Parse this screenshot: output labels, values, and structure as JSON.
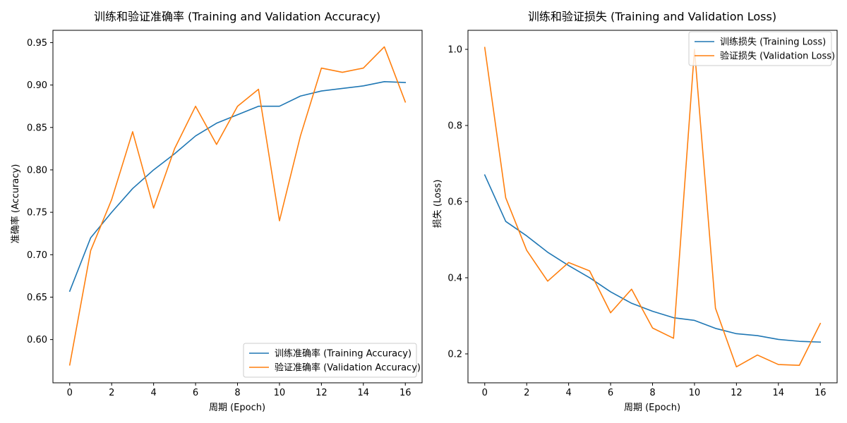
{
  "colors": {
    "training": "#1f77b4",
    "validation": "#ff7f0e",
    "frame": "#000000",
    "legend_border": "#cccccc"
  },
  "chart_data": [
    {
      "type": "line",
      "title": "训练和验证准确率 (Training and Validation Accuracy)",
      "xlabel": "周期 (Epoch)",
      "ylabel": "准确率 (Accuracy)",
      "x": [
        0,
        1,
        2,
        3,
        4,
        5,
        6,
        7,
        8,
        9,
        10,
        11,
        12,
        13,
        14,
        15,
        16
      ],
      "xlim": [
        -0.8,
        16.8
      ],
      "ylim": [
        0.549,
        0.9645
      ],
      "xticks": [
        0,
        2,
        4,
        6,
        8,
        10,
        12,
        14,
        16
      ],
      "xtick_labels": [
        "0",
        "2",
        "4",
        "6",
        "8",
        "10",
        "12",
        "14",
        "16"
      ],
      "yticks": [
        0.6,
        0.65,
        0.7,
        0.75,
        0.8,
        0.85,
        0.9,
        0.95
      ],
      "ytick_labels": [
        "0.60",
        "0.65",
        "0.70",
        "0.75",
        "0.80",
        "0.85",
        "0.90",
        "0.95"
      ],
      "legend": "lower-right",
      "grid": false,
      "series": [
        {
          "name": "训练准确率 (Training Accuracy)",
          "color": "#1f77b4",
          "values": [
            0.657,
            0.72,
            0.75,
            0.778,
            0.8,
            0.819,
            0.84,
            0.855,
            0.865,
            0.875,
            0.875,
            0.887,
            0.893,
            0.896,
            0.899,
            0.904,
            0.903
          ]
        },
        {
          "name": "验证准确率 (Validation Accuracy)",
          "color": "#ff7f0e",
          "values": [
            0.57,
            0.705,
            0.765,
            0.845,
            0.755,
            0.825,
            0.875,
            0.83,
            0.875,
            0.895,
            0.74,
            0.84,
            0.92,
            0.915,
            0.92,
            0.945,
            0.88
          ]
        }
      ]
    },
    {
      "type": "line",
      "title": "训练和验证损失 (Training and Validation Loss)",
      "xlabel": "周期 (Epoch)",
      "ylabel": "损失 (Loss)",
      "x": [
        0,
        1,
        2,
        3,
        4,
        5,
        6,
        7,
        8,
        9,
        10,
        11,
        12,
        13,
        14,
        15,
        16
      ],
      "xlim": [
        -0.8,
        16.8
      ],
      "ylim": [
        0.124,
        1.05
      ],
      "xticks": [
        0,
        2,
        4,
        6,
        8,
        10,
        12,
        14,
        16
      ],
      "xtick_labels": [
        "0",
        "2",
        "4",
        "6",
        "8",
        "10",
        "12",
        "14",
        "16"
      ],
      "yticks": [
        0.2,
        0.4,
        0.6,
        0.8,
        1.0
      ],
      "ytick_labels": [
        "0.2",
        "0.4",
        "0.6",
        "0.8",
        "1.0"
      ],
      "legend": "top-right",
      "grid": false,
      "series": [
        {
          "name": "训练损失 (Training Loss)",
          "color": "#1f77b4",
          "values": [
            0.67,
            0.548,
            0.51,
            0.467,
            0.432,
            0.4,
            0.363,
            0.333,
            0.312,
            0.295,
            0.288,
            0.267,
            0.253,
            0.248,
            0.238,
            0.233,
            0.231
          ]
        },
        {
          "name": "验证损失 (Validation Loss)",
          "color": "#ff7f0e",
          "values": [
            1.005,
            0.61,
            0.472,
            0.391,
            0.44,
            0.418,
            0.308,
            0.37,
            0.268,
            0.241,
            1.0,
            0.32,
            0.166,
            0.197,
            0.172,
            0.17,
            0.28
          ]
        }
      ]
    }
  ]
}
